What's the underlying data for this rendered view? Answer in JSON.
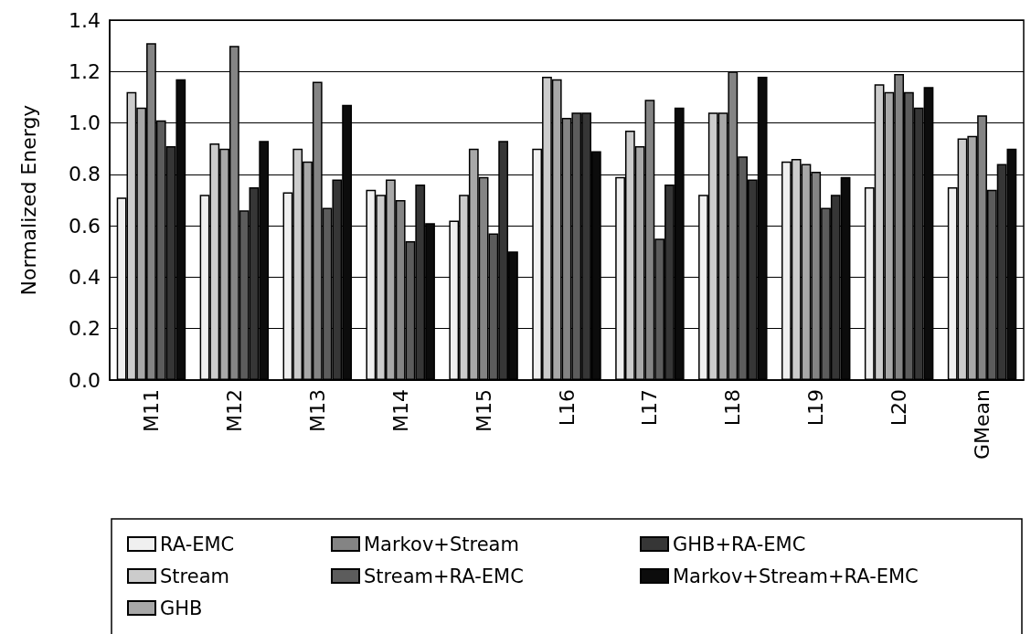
{
  "chart_data": {
    "type": "bar",
    "ylabel": "Normalized Energy",
    "categories": [
      "M11",
      "M12",
      "M13",
      "M14",
      "M15",
      "L16",
      "L17",
      "L18",
      "L19",
      "L20",
      "GMean"
    ],
    "series": [
      {
        "name": "RA-EMC",
        "color": "#f0f0f0",
        "values": [
          0.71,
          0.72,
          0.73,
          0.74,
          0.62,
          0.9,
          0.79,
          0.72,
          0.85,
          0.75,
          0.75
        ]
      },
      {
        "name": "Stream",
        "color": "#cccccc",
        "values": [
          1.12,
          0.92,
          0.9,
          0.72,
          0.72,
          1.18,
          0.97,
          1.04,
          0.86,
          1.15,
          0.94
        ]
      },
      {
        "name": "GHB",
        "color": "#a8a8a8",
        "values": [
          1.06,
          0.9,
          0.85,
          0.78,
          0.9,
          1.17,
          0.91,
          1.04,
          0.84,
          1.12,
          0.95
        ]
      },
      {
        "name": "Markov+Stream",
        "color": "#848484",
        "values": [
          1.31,
          1.3,
          1.16,
          0.7,
          0.79,
          1.02,
          1.09,
          1.2,
          0.81,
          1.19,
          1.03
        ]
      },
      {
        "name": "Stream+RA-EMC",
        "color": "#5c5c5c",
        "values": [
          1.01,
          0.66,
          0.67,
          0.54,
          0.57,
          1.04,
          0.55,
          0.87,
          0.67,
          1.12,
          0.74
        ]
      },
      {
        "name": "GHB+RA-EMC",
        "color": "#363636",
        "values": [
          0.91,
          0.75,
          0.78,
          0.76,
          0.93,
          1.04,
          0.76,
          0.78,
          0.72,
          1.06,
          0.84
        ]
      },
      {
        "name": "Markov+Stream+RA-EMC",
        "color": "#0c0c0c",
        "values": [
          1.17,
          0.93,
          1.07,
          0.61,
          0.5,
          0.89,
          1.06,
          1.18,
          0.79,
          1.14,
          0.9
        ]
      }
    ],
    "ylim": [
      0,
      1.4
    ],
    "yticks": [
      {
        "value": 0,
        "label": "0.0"
      },
      0.2,
      0.4,
      0.6,
      0.8,
      {
        "value": 1,
        "label": "1.0"
      },
      1.2,
      1.4
    ],
    "grid": "y",
    "legend": "bottom"
  }
}
